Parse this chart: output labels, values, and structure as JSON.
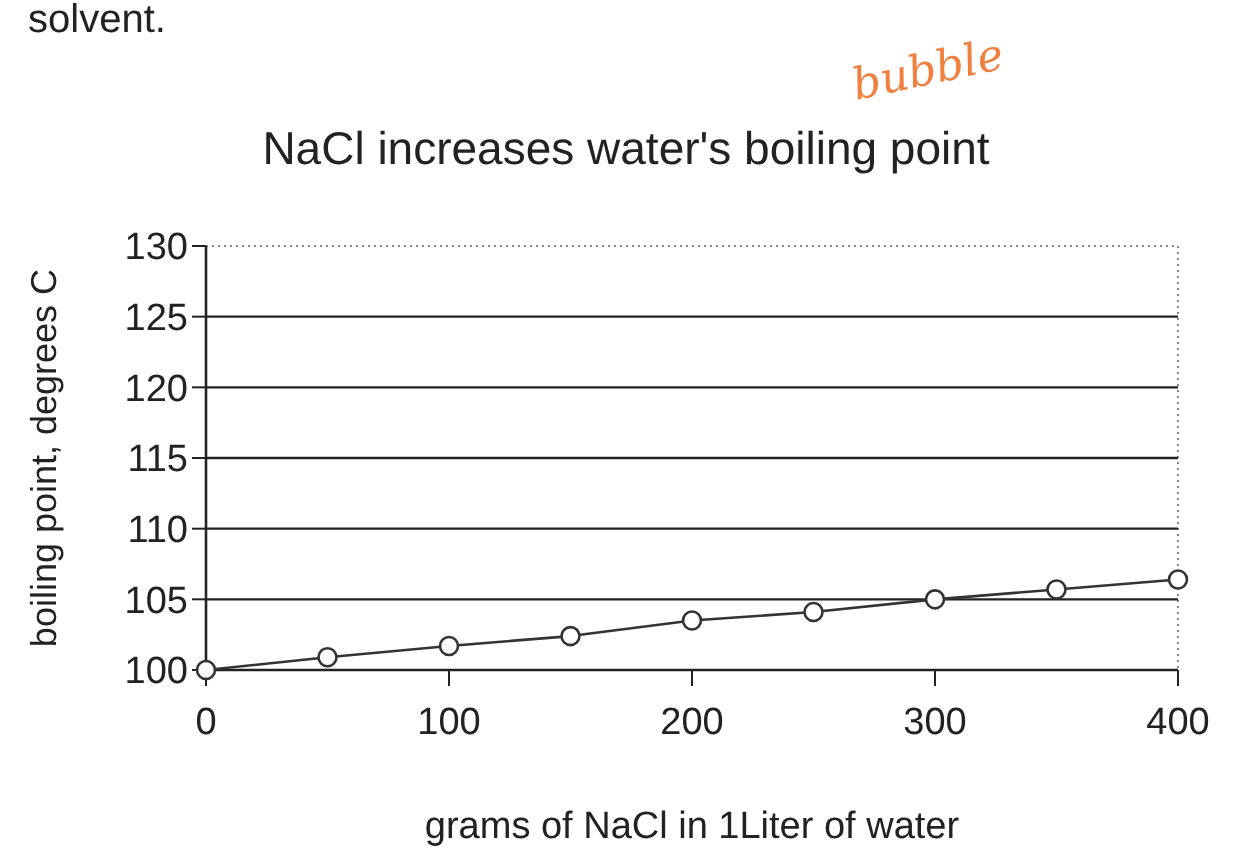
{
  "chart_data": {
    "type": "line",
    "title": "NaCl increases water's boiling point",
    "xlabel": "grams of NaCl in 1Liter of water",
    "ylabel": "boiling point, degrees C",
    "annotations": [
      "solvent.",
      "bubble"
    ],
    "x": [
      0,
      50,
      100,
      150,
      200,
      250,
      300,
      350,
      400
    ],
    "series": [
      {
        "color": "#333333",
        "values": [
          100,
          100.9,
          101.7,
          102.4,
          103.5,
          104.1,
          105.0,
          105.7,
          106.4
        ]
      }
    ],
    "xlim": [
      0,
      400
    ],
    "xticks": [
      0,
      100,
      200,
      300,
      400
    ],
    "ylim": [
      100,
      130
    ],
    "yticks": [
      100,
      105,
      110,
      115,
      120,
      125,
      130
    ],
    "grid": "y",
    "marker": "circle",
    "line_style": "solid"
  }
}
